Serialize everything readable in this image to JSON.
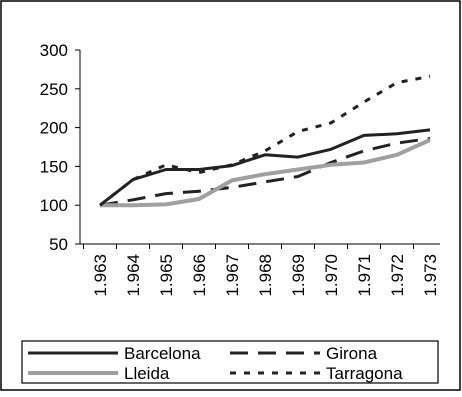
{
  "chart_data": {
    "type": "line",
    "title": "",
    "xlabel": "",
    "ylabel": "",
    "x": [
      "1.963",
      "1.964",
      "1.965",
      "1.966",
      "1.967",
      "1.968",
      "1.969",
      "1.970",
      "1.971",
      "1.972",
      "1.973"
    ],
    "ylim": [
      50,
      300
    ],
    "yticks": [
      50,
      100,
      150,
      200,
      250,
      300
    ],
    "grid": false,
    "legend_position": "bottom",
    "series": [
      {
        "name": "Barcelona",
        "style": "solid",
        "color": "#222222",
        "values": [
          100,
          133,
          146,
          146,
          151,
          165,
          162,
          172,
          190,
          192,
          197
        ]
      },
      {
        "name": "Girona",
        "style": "long-dash",
        "color": "#222222",
        "values": [
          100,
          107,
          115,
          118,
          123,
          130,
          137,
          155,
          170,
          180,
          186
        ]
      },
      {
        "name": "Lleida",
        "style": "solid",
        "color": "#a0a0a0",
        "values": [
          100,
          100,
          101,
          108,
          132,
          140,
          146,
          152,
          155,
          165,
          184
        ]
      },
      {
        "name": "Tarragona",
        "style": "short-dash",
        "color": "#222222",
        "values": [
          100,
          133,
          152,
          142,
          152,
          170,
          195,
          206,
          233,
          258,
          266
        ]
      }
    ]
  }
}
